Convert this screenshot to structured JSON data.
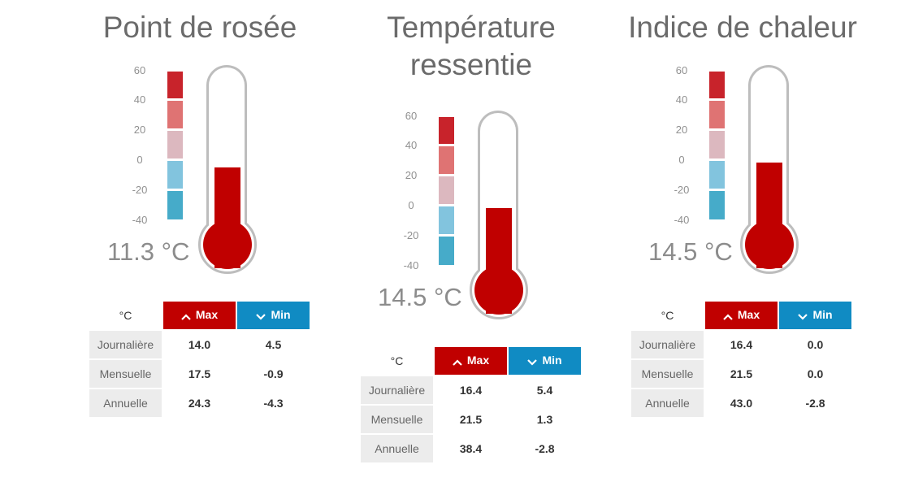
{
  "panels": [
    {
      "title": "Point de rosée",
      "scale": [
        "60",
        "40",
        "20",
        "0",
        "-20",
        "-40"
      ],
      "reading": "11.3 °C",
      "fill_fraction": 0.42,
      "table": {
        "unit": "°C",
        "max_label": "Max",
        "min_label": "Min",
        "rows": [
          {
            "label": "Journalière",
            "max": "14.0",
            "min": "4.5"
          },
          {
            "label": "Mensuelle",
            "max": "17.5",
            "min": "-0.9"
          },
          {
            "label": "Annuelle",
            "max": "24.3",
            "min": "-4.3"
          }
        ]
      }
    },
    {
      "title": "Température ressentie",
      "scale": [
        "60",
        "40",
        "20",
        "0",
        "-20",
        "-40"
      ],
      "reading": "14.5 °C",
      "fill_fraction": 0.45,
      "table": {
        "unit": "°C",
        "max_label": "Max",
        "min_label": "Min",
        "rows": [
          {
            "label": "Journalière",
            "max": "16.4",
            "min": "5.4"
          },
          {
            "label": "Mensuelle",
            "max": "21.5",
            "min": "1.3"
          },
          {
            "label": "Annuelle",
            "max": "38.4",
            "min": "-2.8"
          }
        ]
      }
    },
    {
      "title": "Indice de chaleur",
      "scale": [
        "60",
        "40",
        "20",
        "0",
        "-20",
        "-40"
      ],
      "reading": "14.5 °C",
      "fill_fraction": 0.45,
      "table": {
        "unit": "°C",
        "max_label": "Max",
        "min_label": "Min",
        "rows": [
          {
            "label": "Journalière",
            "max": "16.4",
            "min": "0.0"
          },
          {
            "label": "Mensuelle",
            "max": "21.5",
            "min": "0.0"
          },
          {
            "label": "Annuelle",
            "max": "43.0",
            "min": "-2.8"
          }
        ]
      }
    }
  ],
  "colors": {
    "max_header": "#c00000",
    "min_header": "#108bc3",
    "mercury": "#c00000"
  },
  "icons": {
    "max": "chevron-up-icon",
    "min": "chevron-down-icon"
  }
}
